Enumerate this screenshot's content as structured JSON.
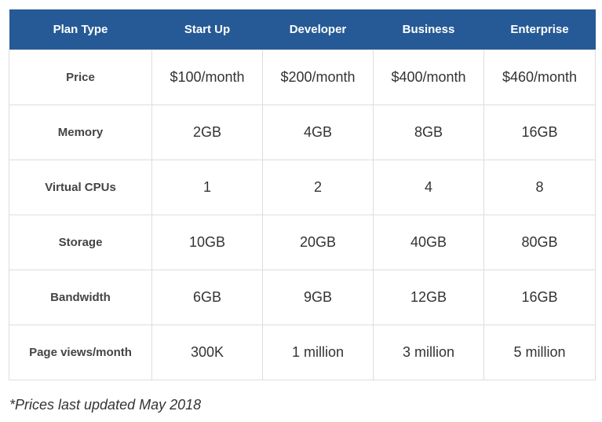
{
  "table": {
    "headers": [
      "Plan Type",
      "Start Up",
      "Developer",
      "Business",
      "Enterprise"
    ],
    "rows": [
      {
        "label": "Price",
        "values": [
          "$100/month",
          "$200/month",
          "$400/month",
          "$460/month"
        ]
      },
      {
        "label": "Memory",
        "values": [
          "2GB",
          "4GB",
          "8GB",
          "16GB"
        ]
      },
      {
        "label": "Virtual CPUs",
        "values": [
          "1",
          "2",
          "4",
          "8"
        ]
      },
      {
        "label": "Storage",
        "values": [
          "10GB",
          "20GB",
          "40GB",
          "80GB"
        ]
      },
      {
        "label": "Bandwidth",
        "values": [
          "6GB",
          "9GB",
          "12GB",
          "16GB"
        ]
      },
      {
        "label": "Page views/month",
        "values": [
          "300K",
          "1 million",
          "3 million",
          "5 million"
        ]
      }
    ]
  },
  "footnote": "*Prices last updated May 2018",
  "colors": {
    "header_background": "#265a96",
    "header_text": "#ffffff",
    "border": "#dddddd"
  }
}
